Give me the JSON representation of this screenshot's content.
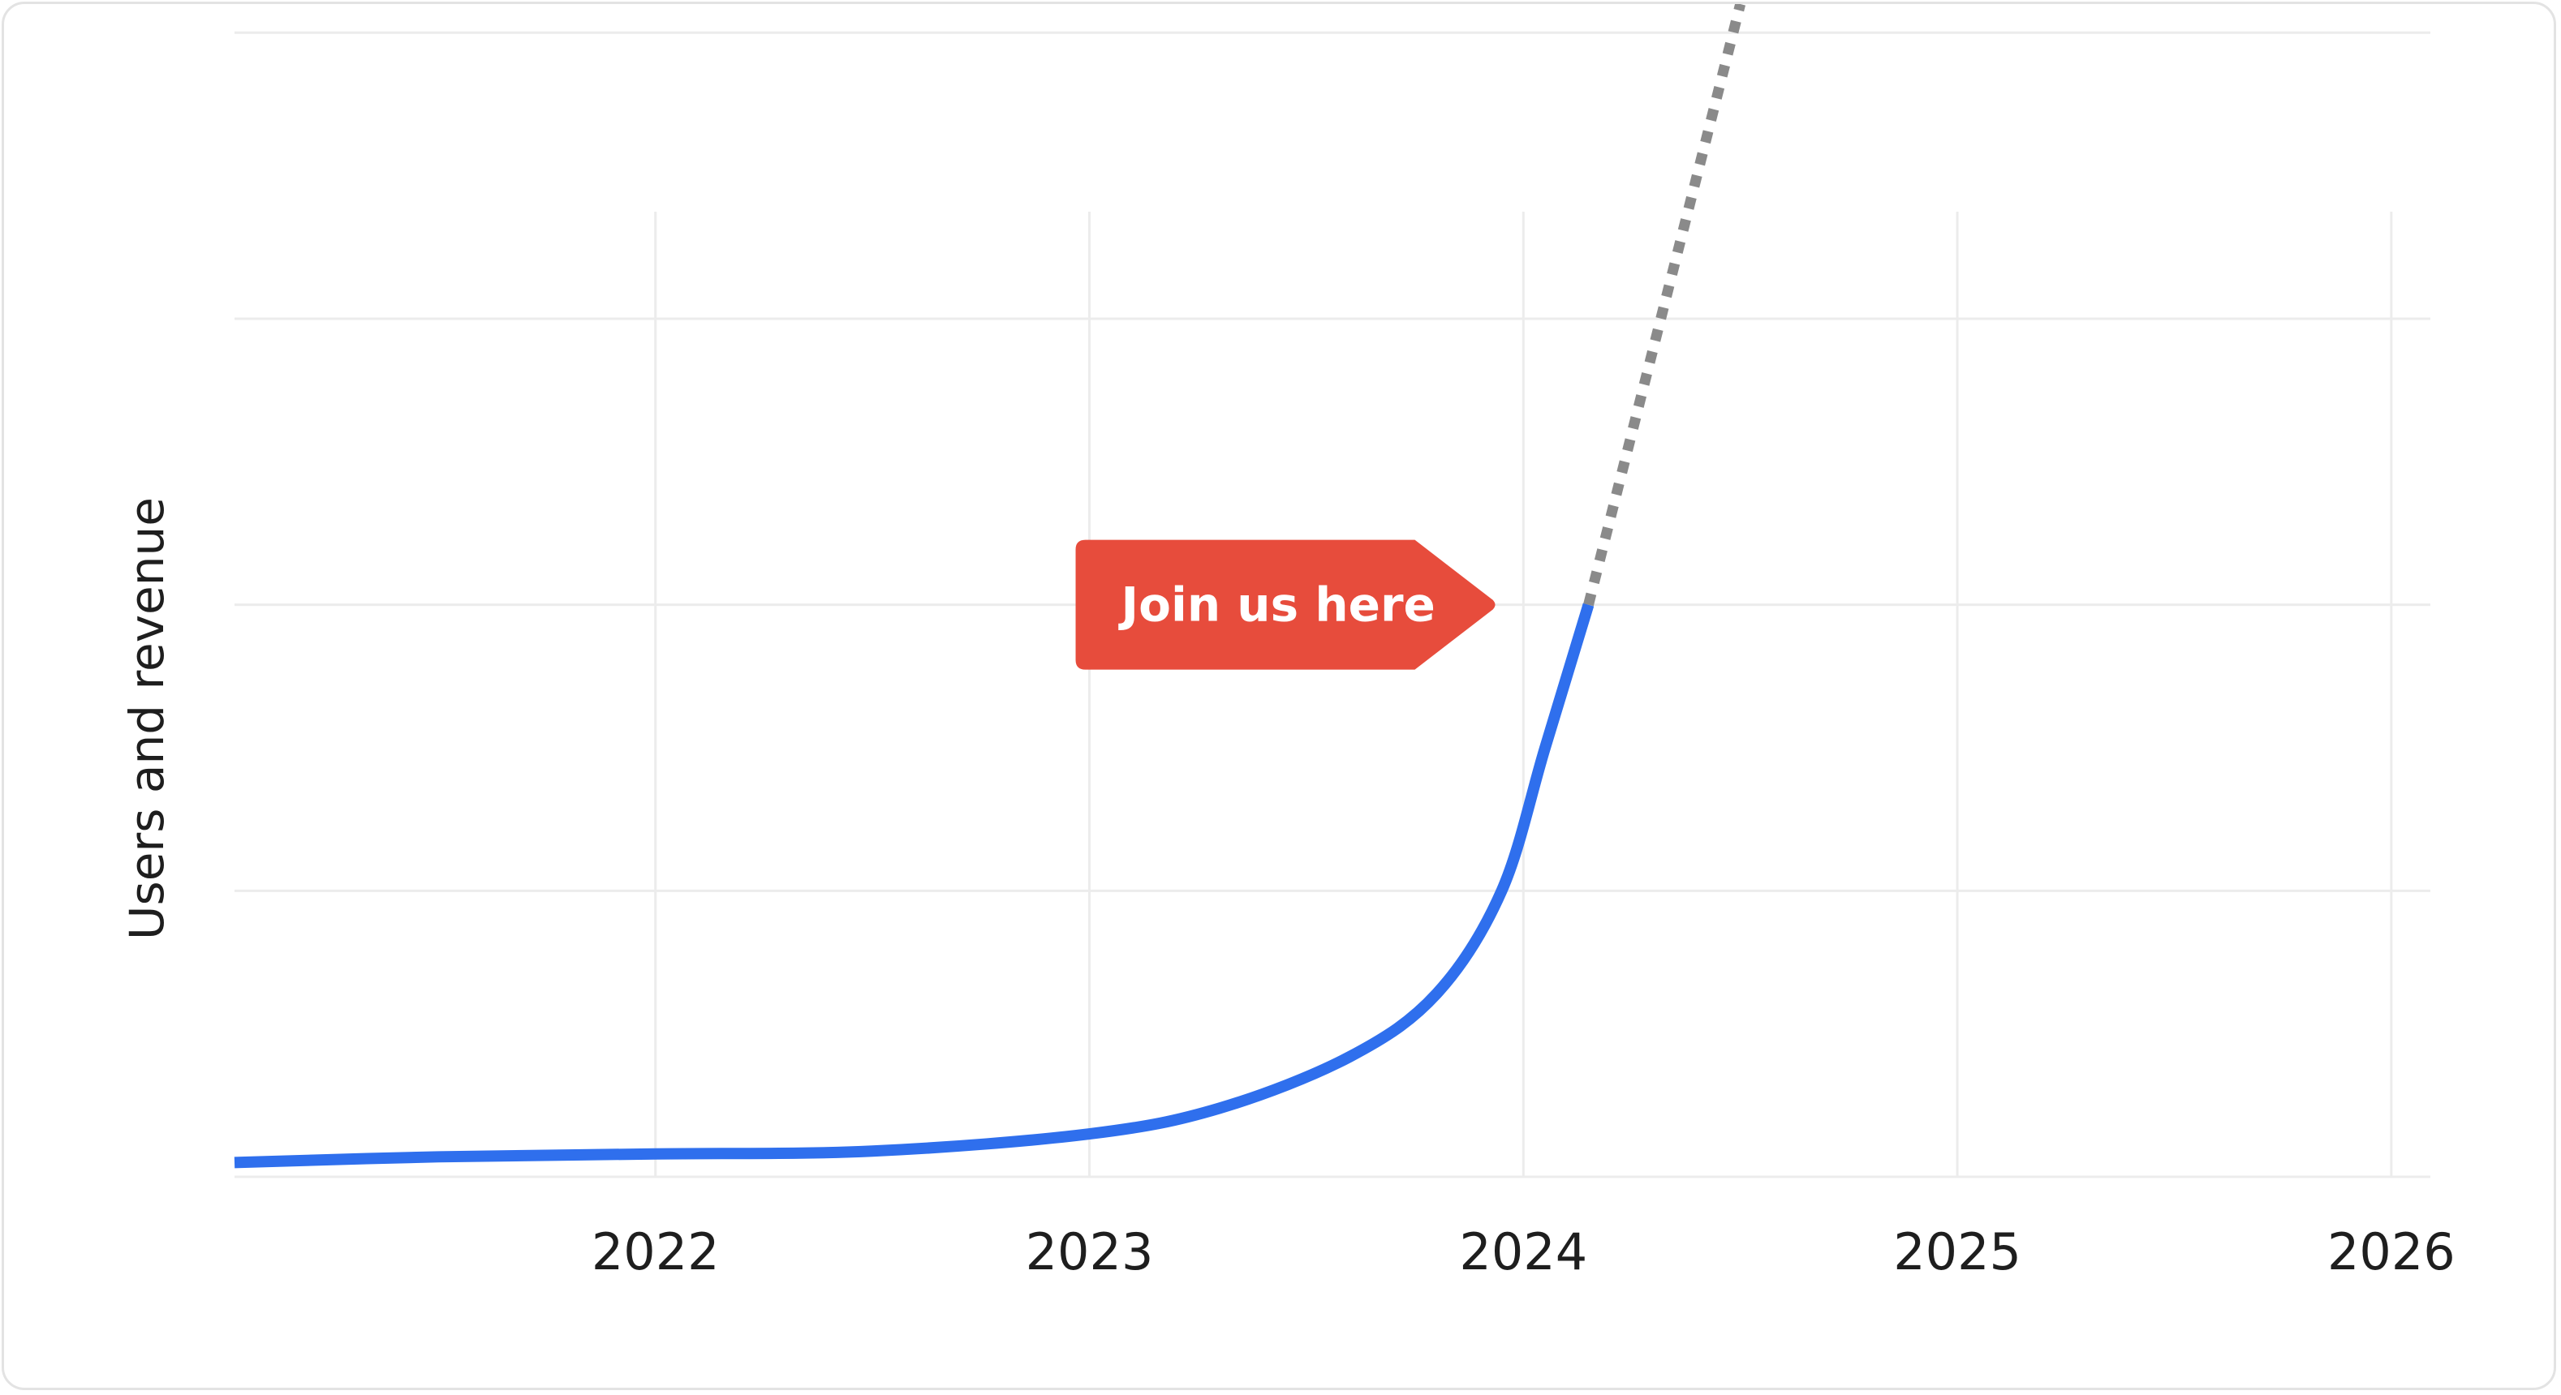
{
  "chart_data": {
    "type": "line",
    "xlabel": "",
    "ylabel": "Users and revenue",
    "x_ticks": [
      "2022",
      "2023",
      "2024",
      "2025",
      "2026"
    ],
    "xlim": [
      2021.03,
      2026.09
    ],
    "ylim": [
      0,
      4.1
    ],
    "grid": true,
    "series": [
      {
        "style": "solid",
        "color": "#2f6fed",
        "points": [
          [
            2021.03,
            0.05
          ],
          [
            2021.5,
            0.07
          ],
          [
            2022.0,
            0.08
          ],
          [
            2022.5,
            0.09
          ],
          [
            2023.0,
            0.15
          ],
          [
            2023.3,
            0.24
          ],
          [
            2023.6,
            0.42
          ],
          [
            2023.8,
            0.64
          ],
          [
            2023.95,
            1.0
          ],
          [
            2024.05,
            1.5
          ],
          [
            2024.15,
            2.0
          ]
        ]
      },
      {
        "style": "dotted",
        "color": "#8a8a8a",
        "points": [
          [
            2024.15,
            2.0
          ],
          [
            2024.25,
            2.6
          ],
          [
            2024.35,
            3.2
          ],
          [
            2024.5,
            4.1
          ]
        ]
      }
    ],
    "annotation": {
      "text": "Join us here",
      "x": 2024.15,
      "y": 2.0,
      "color": "#e74c3c"
    }
  }
}
